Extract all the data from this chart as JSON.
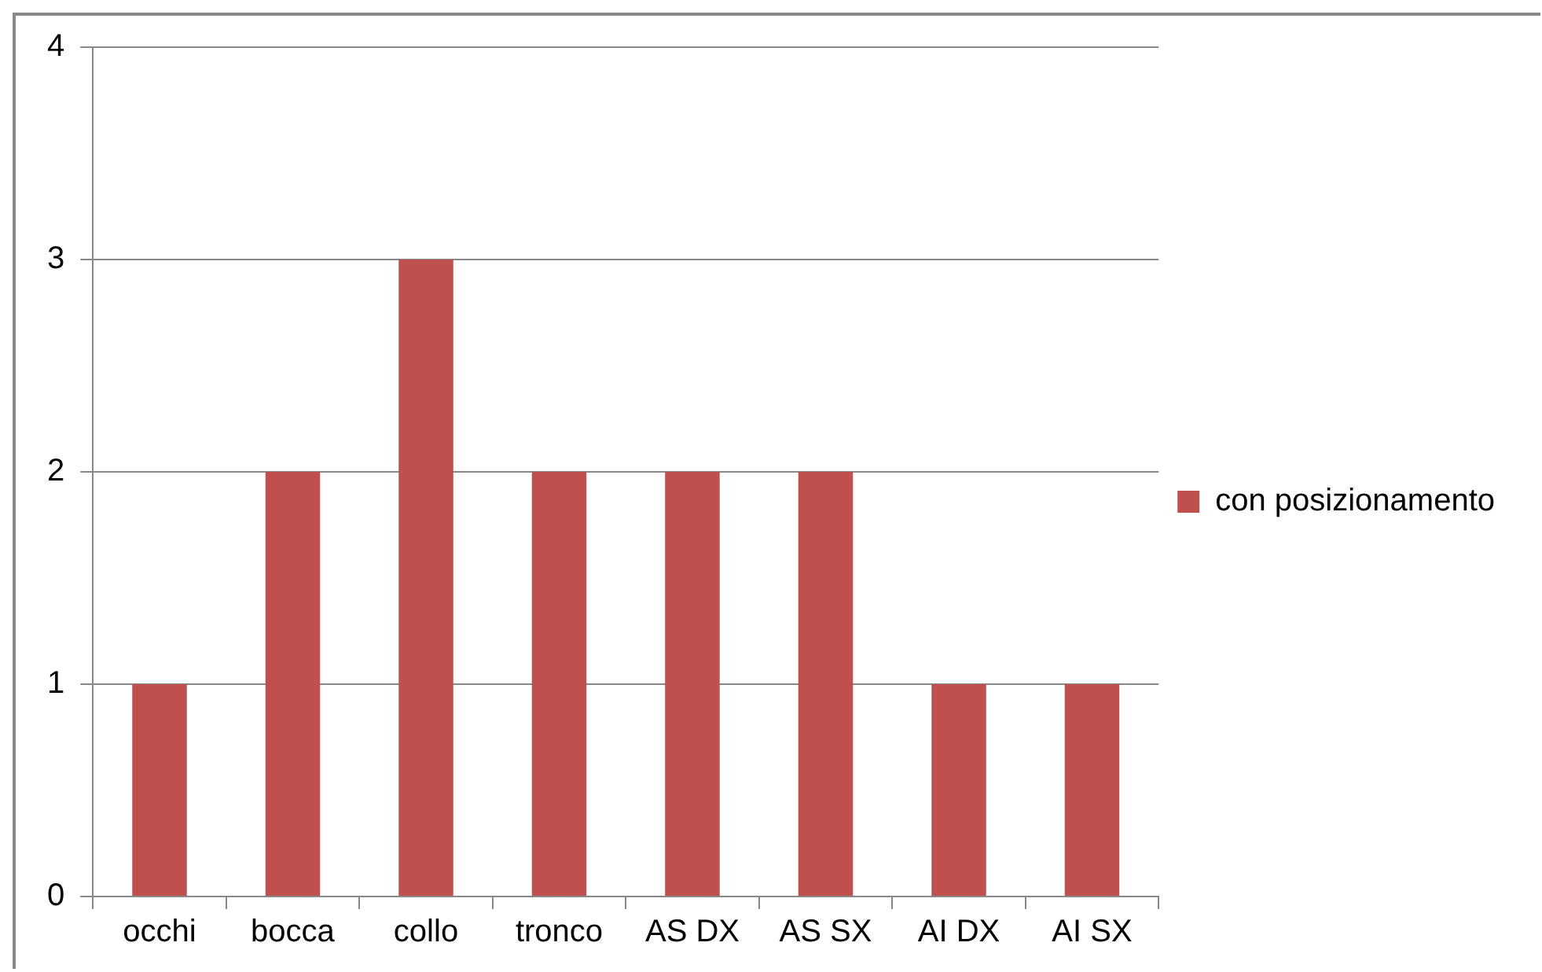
{
  "chart_data": {
    "type": "bar",
    "categories": [
      "occhi",
      "bocca",
      "collo",
      "tronco",
      "AS DX",
      "AS SX",
      "AI DX",
      "AI SX"
    ],
    "series": [
      {
        "name": "con posizionamento",
        "color": "#c0504d",
        "values": [
          1,
          2,
          3,
          2,
          2,
          2,
          1,
          1
        ]
      }
    ],
    "ylim": [
      0,
      4
    ],
    "yticks": [
      0,
      1,
      2,
      3,
      4
    ],
    "grid": "y",
    "legend": "right"
  }
}
